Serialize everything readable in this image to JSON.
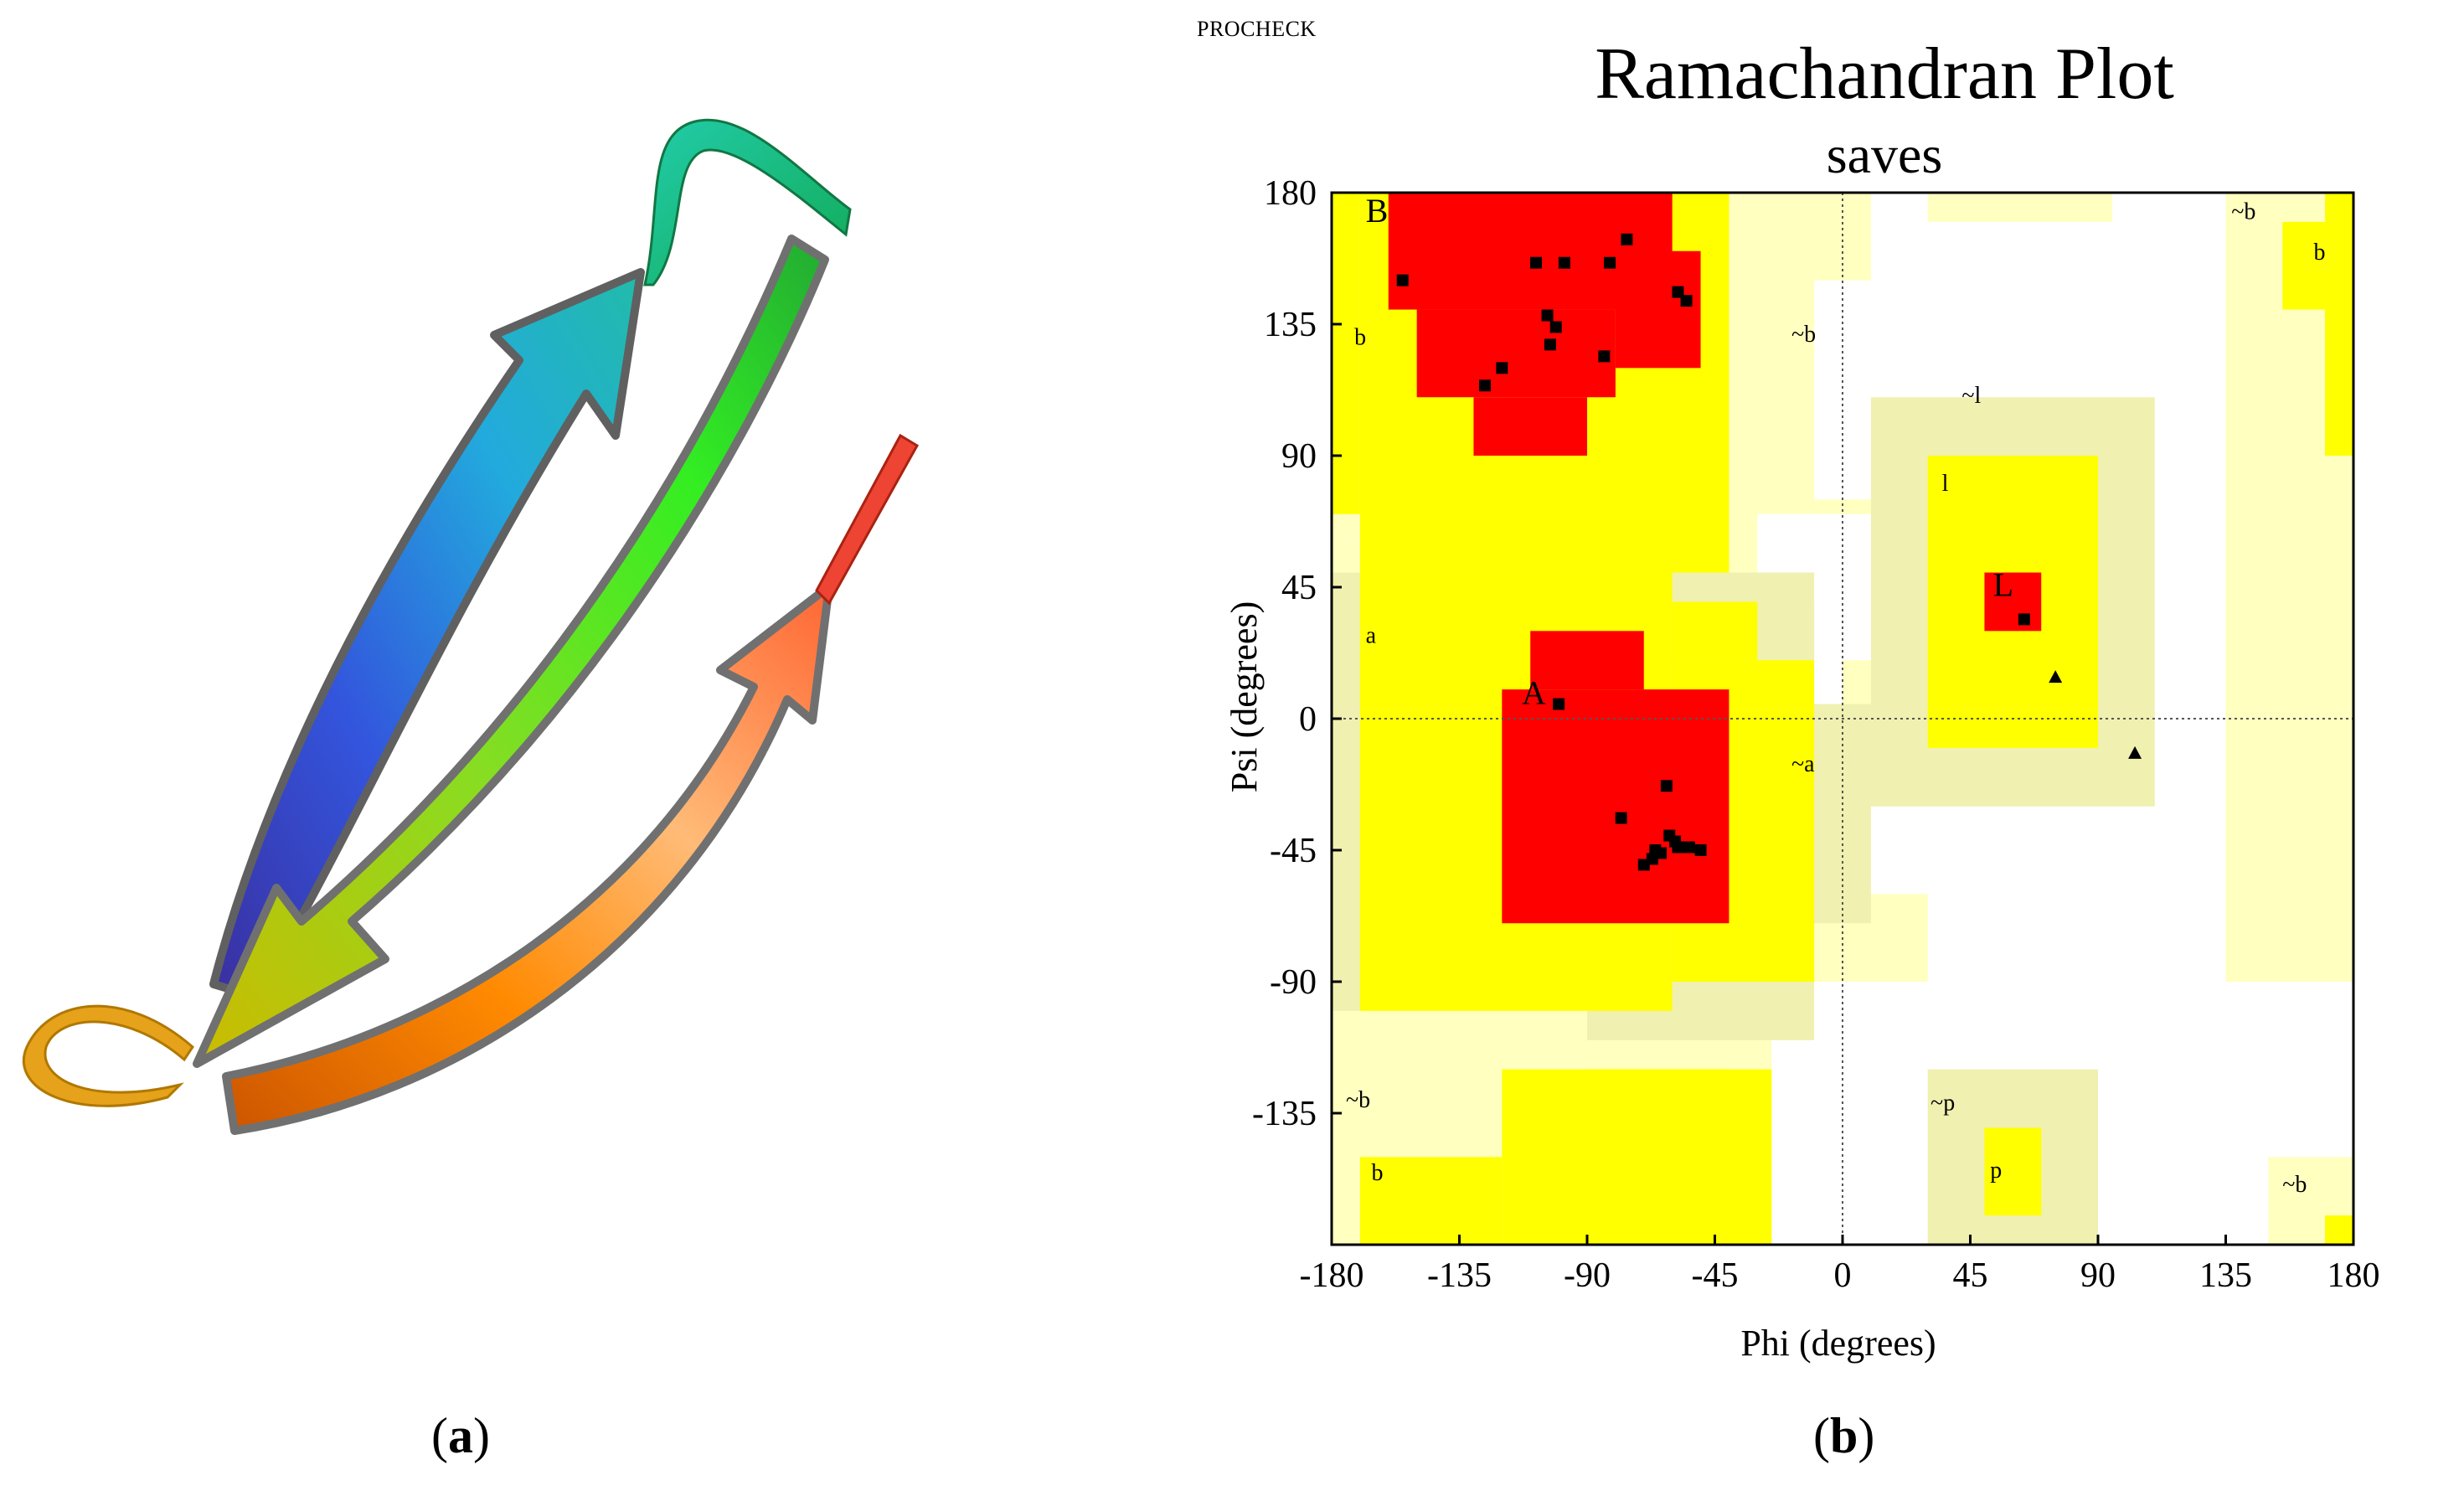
{
  "panel_labels": {
    "a": "a",
    "b": "b"
  },
  "chart_data": {
    "type": "scatter",
    "source_tag": "PROCHECK",
    "title": "Ramachandran Plot",
    "subtitle": "saves",
    "xlabel": "Phi (degrees)",
    "ylabel": "Psi (degrees)",
    "xlim": [
      -180,
      180
    ],
    "ylim": [
      -180,
      180
    ],
    "xticks": [
      -180,
      -135,
      -90,
      -45,
      0,
      45,
      90,
      135,
      180
    ],
    "yticks": [
      -135,
      -90,
      -45,
      0,
      45,
      90,
      135,
      180
    ],
    "colors": {
      "core": "#ff0000",
      "allowed": "#ffff00",
      "generous": "#f0f0b0",
      "generous_light": "#ffffc0",
      "background": "#ffffff"
    },
    "region_labels": [
      {
        "text": "B",
        "phi": -168,
        "psi": 170
      },
      {
        "text": "b",
        "phi": -172,
        "psi": 128
      },
      {
        "text": "~b",
        "phi": -18,
        "psi": 129
      },
      {
        "text": "~l",
        "phi": 42,
        "psi": 108
      },
      {
        "text": "l",
        "phi": 35,
        "psi": 78
      },
      {
        "text": "L",
        "phi": 53,
        "psi": 42
      },
      {
        "text": "a",
        "phi": -168,
        "psi": 26
      },
      {
        "text": "A",
        "phi": -113,
        "psi": 5
      },
      {
        "text": "~a",
        "phi": -18,
        "psi": -18
      },
      {
        "text": "~b",
        "phi": -175,
        "psi": -133
      },
      {
        "text": "b",
        "phi": -166,
        "psi": -158
      },
      {
        "text": "~p",
        "phi": 31,
        "psi": -134
      },
      {
        "text": "p",
        "phi": 52,
        "psi": -157
      },
      {
        "text": "~b",
        "phi": 137,
        "psi": 171
      },
      {
        "text": "b",
        "phi": 166,
        "psi": 157
      },
      {
        "text": "~b",
        "phi": 155,
        "psi": -162
      }
    ],
    "residues_square": [
      [
        -155,
        150
      ],
      [
        -108,
        156
      ],
      [
        -98,
        156
      ],
      [
        -76,
        164
      ],
      [
        -82,
        156
      ],
      [
        -58,
        146
      ],
      [
        -55,
        143
      ],
      [
        -104,
        138
      ],
      [
        -101,
        134
      ],
      [
        -103,
        128
      ],
      [
        -120,
        120
      ],
      [
        -126,
        114
      ],
      [
        -84,
        124
      ],
      [
        -100,
        5
      ],
      [
        -62,
        -23
      ],
      [
        -78,
        -34
      ],
      [
        -66,
        -45
      ],
      [
        -61,
        -40
      ],
      [
        -58,
        -44
      ],
      [
        -54,
        -44
      ],
      [
        -64,
        -46
      ],
      [
        -50,
        -45
      ],
      [
        -59,
        -42
      ],
      [
        -67,
        -48
      ],
      [
        -70,
        -50
      ],
      [
        64,
        34
      ]
    ],
    "residues_triangle": [
      [
        75,
        14
      ],
      [
        103,
        -12
      ]
    ]
  }
}
